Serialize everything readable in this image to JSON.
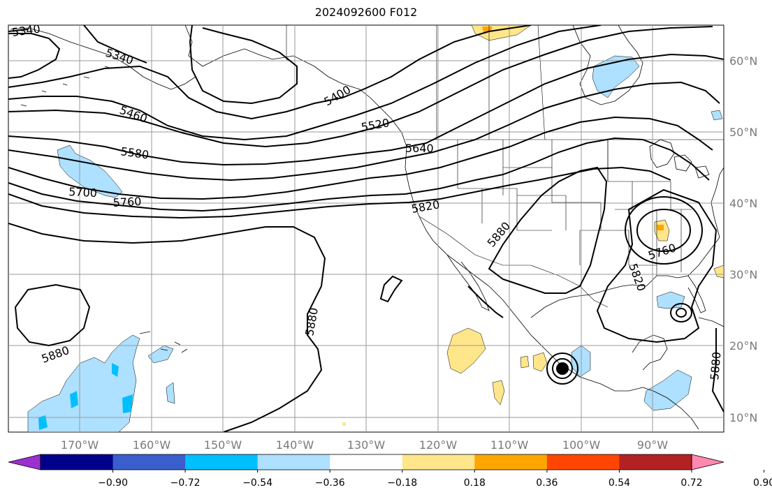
{
  "title": "2024092600 F012",
  "longitude_labels": [
    "170°W",
    "160°W",
    "150°W",
    "140°W",
    "130°W",
    "120°W",
    "110°W",
    "100°W",
    "90°W"
  ],
  "latitude_labels": [
    "60°N",
    "50°N",
    "40°N",
    "30°N",
    "20°N",
    "10°N"
  ],
  "contour_labels": [
    "5340",
    "5340",
    "5460",
    "5400",
    "5520",
    "5580",
    "5640",
    "5700",
    "5760",
    "5820",
    "5880",
    "5880",
    "5760",
    "5820",
    "5880",
    "5880"
  ],
  "colorbar": {
    "ticks": [
      "−0.90",
      "−0.72",
      "−0.54",
      "−0.36",
      "−0.18",
      "0.18",
      "0.36",
      "0.54",
      "0.72",
      "0.90"
    ],
    "colors": [
      "#9b30d0",
      "#00008b",
      "#3a5fcd",
      "#00bfff",
      "#aee0ff",
      "#ffffff",
      "#ffe68a",
      "#ffa500",
      "#ff4500",
      "#b22222",
      "#ff88b0"
    ]
  },
  "colors": {
    "grid": "#9a9a9a",
    "contour": "#000000",
    "label": "#7a7a7a"
  }
}
